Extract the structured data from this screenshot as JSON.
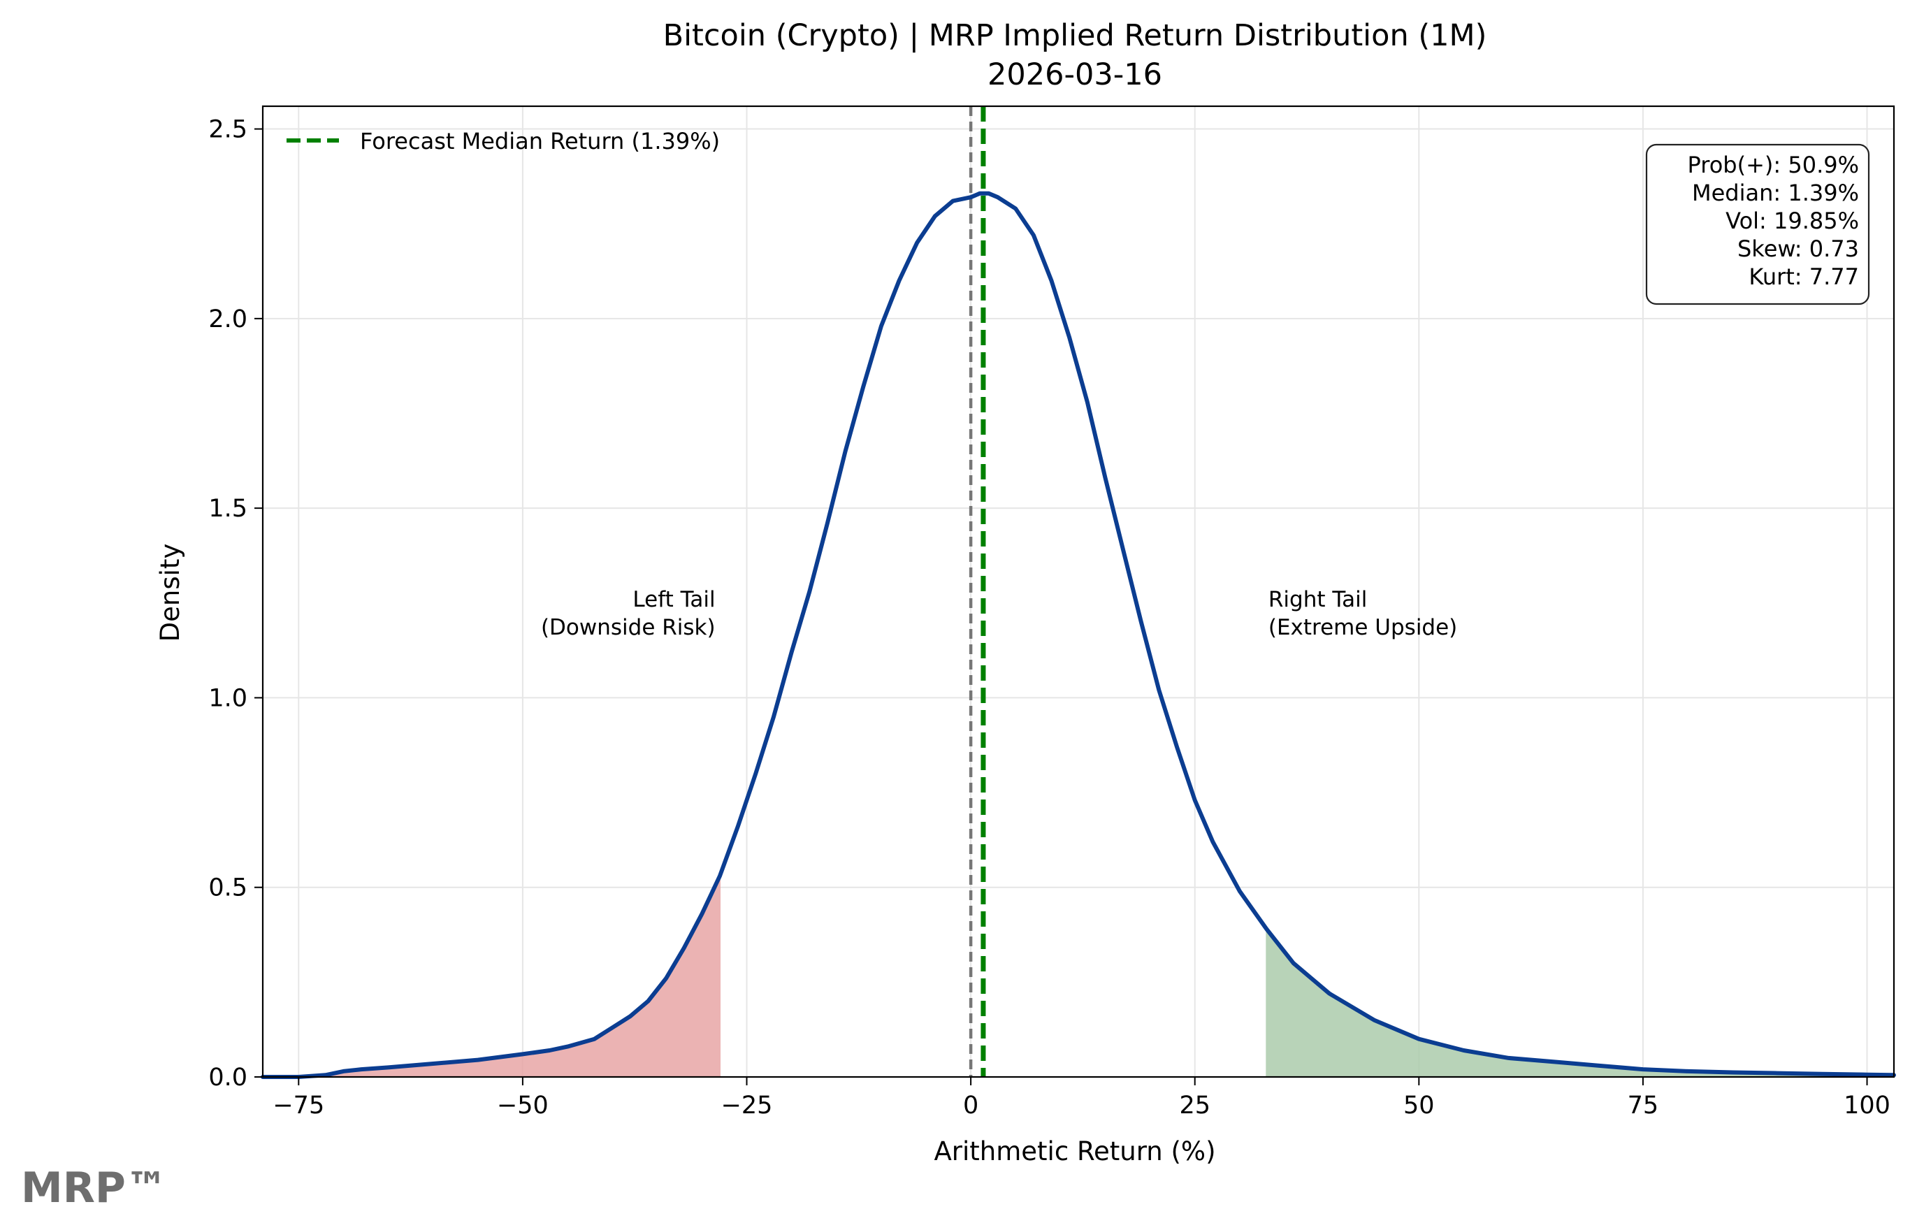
{
  "chart_data": {
    "type": "line",
    "title": "Bitcoin (Crypto) | MRP Implied Return Distribution (1M)",
    "subtitle": "2026-03-16",
    "xlabel": "Arithmetic Return (%)",
    "ylabel": "Density",
    "xlim": [
      -79,
      103
    ],
    "ylim": [
      0,
      2.56
    ],
    "xticks": [
      -75,
      -50,
      -25,
      0,
      25,
      50,
      75,
      100
    ],
    "xtick_labels": [
      "−75",
      "−50",
      "−25",
      "0",
      "25",
      "50",
      "75",
      "100"
    ],
    "yticks": [
      0.0,
      0.5,
      1.0,
      1.5,
      2.0,
      2.5
    ],
    "ytick_labels": [
      "0.0",
      "0.5",
      "1.0",
      "1.5",
      "2.0",
      "2.5"
    ],
    "grid": true,
    "legend_position": "top-left",
    "series": [
      {
        "name": "density",
        "color": "#0b3d91",
        "x": [
          -79,
          -75,
          -72,
          -70,
          -68,
          -65,
          -60,
          -55,
          -50,
          -47,
          -45,
          -42,
          -40,
          -38,
          -36,
          -34,
          -32,
          -30,
          -28,
          -26,
          -24,
          -22,
          -20,
          -18,
          -16,
          -14,
          -12,
          -10,
          -8,
          -6,
          -4,
          -2,
          0,
          1,
          1.5,
          2,
          3,
          5,
          7,
          9,
          11,
          13,
          15,
          17,
          19,
          21,
          23,
          25,
          27,
          30,
          33,
          36,
          40,
          45,
          50,
          55,
          60,
          65,
          70,
          75,
          80,
          85,
          90,
          95,
          100,
          103
        ],
        "y": [
          0.0,
          0.0,
          0.005,
          0.015,
          0.02,
          0.025,
          0.035,
          0.045,
          0.06,
          0.07,
          0.08,
          0.1,
          0.13,
          0.16,
          0.2,
          0.26,
          0.34,
          0.43,
          0.53,
          0.66,
          0.8,
          0.95,
          1.12,
          1.28,
          1.46,
          1.65,
          1.82,
          1.98,
          2.1,
          2.2,
          2.27,
          2.31,
          2.32,
          2.33,
          2.33,
          2.33,
          2.32,
          2.29,
          2.22,
          2.1,
          1.95,
          1.78,
          1.58,
          1.39,
          1.2,
          1.02,
          0.87,
          0.73,
          0.62,
          0.49,
          0.39,
          0.3,
          0.22,
          0.15,
          0.1,
          0.07,
          0.05,
          0.04,
          0.03,
          0.02,
          0.015,
          0.012,
          0.01,
          0.008,
          0.006,
          0.005
        ]
      }
    ],
    "vlines": [
      {
        "x": 0,
        "color": "#777777",
        "style": "dashed"
      },
      {
        "x": 1.39,
        "color": "#008000",
        "style": "dashed",
        "legend": "Forecast Median Return (1.39%)"
      }
    ],
    "tails": [
      {
        "from": -79,
        "to": -28,
        "color": "#e8a6a6",
        "label_lines": [
          "Left Tail",
          "(Downside Risk)"
        ],
        "label_x": -28.5,
        "label_y": 1.24,
        "align": "end"
      },
      {
        "from": 33,
        "to": 103,
        "color": "#acccac",
        "label_lines": [
          "Right Tail",
          "(Extreme Upside)"
        ],
        "label_x": 33.2,
        "label_y": 1.24,
        "align": "start"
      }
    ],
    "stats_box": [
      "Prob(+): 50.9%",
      "Median: 1.39%",
      "Vol: 19.85%",
      "Skew: 0.73",
      "Kurt: 7.77"
    ]
  },
  "watermark": "MRP™"
}
